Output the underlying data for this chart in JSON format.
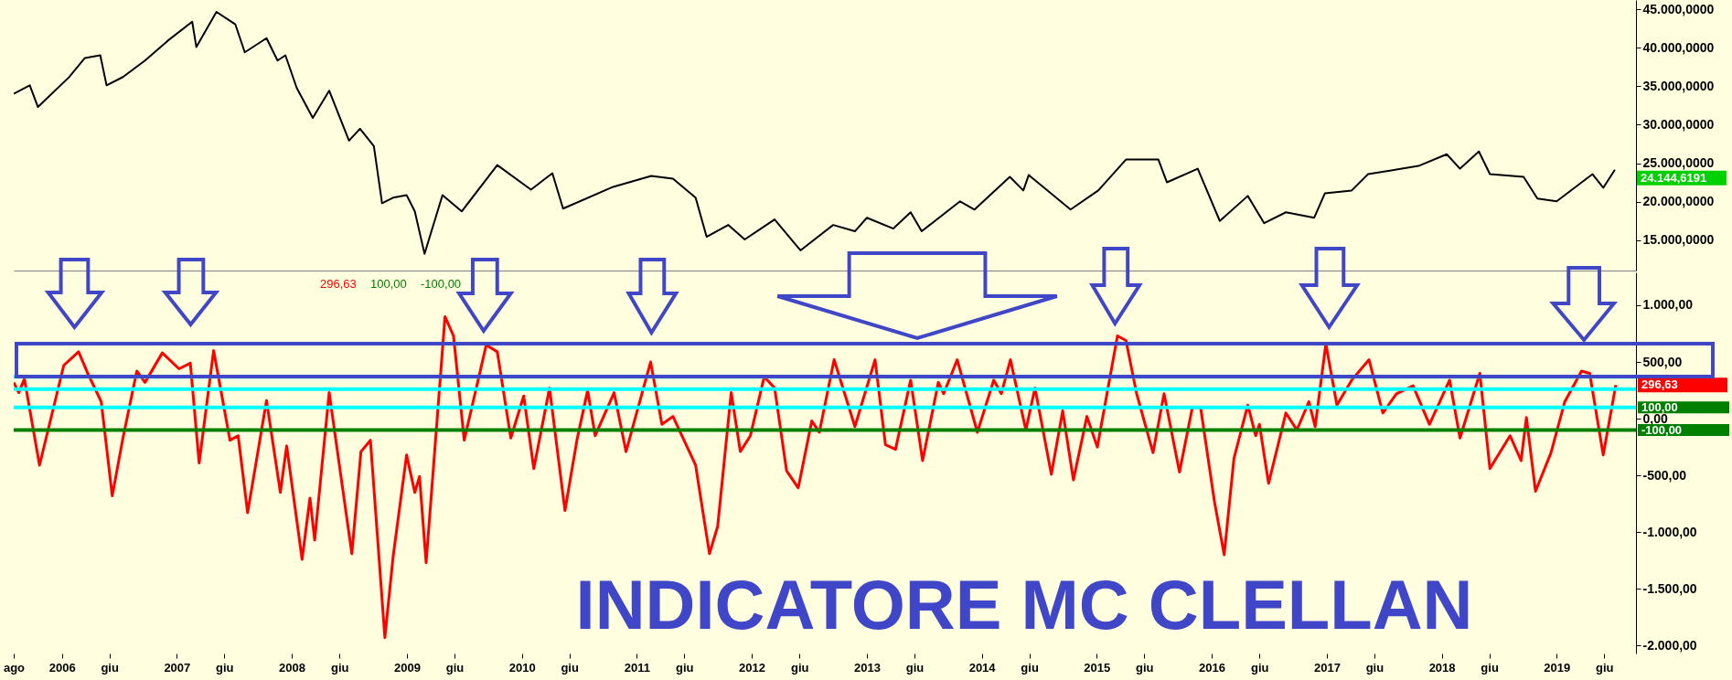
{
  "chart_data": [
    {
      "type": "line",
      "tick_labels": "y",
      "xlim": [
        "2005-08-01",
        "2019-09-10"
      ],
      "ylim": [
        11060,
        46200
      ],
      "yticks": [
        {
          "value": 15000,
          "label": "15.000,0000"
        },
        {
          "value": 20000,
          "label": "20.000,0000"
        },
        {
          "value": 25000,
          "label": "25.000,0000"
        },
        {
          "value": 30000,
          "label": "30.000,0000"
        },
        {
          "value": 35000,
          "label": "35.000,0000"
        },
        {
          "value": 40000,
          "label": "40.000,0000"
        },
        {
          "value": 45000,
          "label": "45.000,0000"
        }
      ],
      "x": [
        "2005-08-01",
        "2005-09-21",
        "2005-10-17",
        "2006-01-24",
        "2006-03-15",
        "2006-05-03",
        "2006-05-23",
        "2006-07-14",
        "2006-09-22",
        "2006-12-03",
        "2007-02-19",
        "2007-03-04",
        "2007-05-07",
        "2007-07-06",
        "2007-08-05",
        "2007-10-13",
        "2007-11-17",
        "2007-12-12",
        "2008-01-17",
        "2008-03-08",
        "2008-04-29",
        "2008-07-01",
        "2008-08-05",
        "2008-09-18",
        "2008-10-14",
        "2008-11-18",
        "2008-12-31",
        "2009-01-26",
        "2009-02-26",
        "2009-04-24",
        "2009-06-24",
        "2009-10-15",
        "2010-01-30",
        "2010-04-08",
        "2010-05-12",
        "2010-10-18",
        "2011-02-16",
        "2011-04-26",
        "2011-07-07",
        "2011-08-11",
        "2011-10-19",
        "2011-12-10",
        "2012-03-14",
        "2012-06-04",
        "2012-09-16",
        "2012-11-24",
        "2013-01-01",
        "2013-03-26",
        "2013-05-20",
        "2013-06-24",
        "2013-10-24",
        "2013-12-09",
        "2014-03-31",
        "2014-05-13",
        "2014-05-30",
        "2014-10-10",
        "2015-01-06",
        "2015-04-04",
        "2015-07-16",
        "2015-08-12",
        "2015-11-18",
        "2016-01-27",
        "2016-04-25",
        "2016-06-16",
        "2016-08-24",
        "2016-11-22",
        "2016-12-26",
        "2017-03-21",
        "2017-05-12",
        "2017-10-19",
        "2018-01-17",
        "2018-02-28",
        "2018-04-29",
        "2018-06-03",
        "2018-09-18",
        "2018-11-01",
        "2019-01-01",
        "2019-04-25",
        "2019-05-29",
        "2019-07-05"
      ],
      "series": [
        {
          "color": "#000000",
          "values": [
            34030,
            35120,
            32300,
            36180,
            38670,
            39020,
            35120,
            36200,
            38330,
            40900,
            43380,
            40100,
            44660,
            43030,
            39400,
            41240,
            38330,
            39020,
            34770,
            30880,
            34420,
            27940,
            29470,
            27230,
            19800,
            20520,
            20860,
            18740,
            13230,
            20860,
            18740,
            24760,
            21570,
            23700,
            19100,
            21930,
            23340,
            22990,
            20520,
            15450,
            16980,
            15100,
            17690,
            13680,
            16980,
            16160,
            17920,
            16510,
            18630,
            16160,
            20050,
            18980,
            23230,
            21460,
            23460,
            18980,
            21460,
            25470,
            25470,
            22520,
            24290,
            17500,
            20750,
            17210,
            18630,
            17920,
            21100,
            21460,
            23580,
            24640,
            26170,
            24290,
            26520,
            23580,
            23230,
            20400,
            20050,
            23580,
            21810,
            24144.6191
          ]
        }
      ],
      "annotations": [
        {
          "text": "24.144,6191",
          "x": "2019-07-05",
          "y": 24144.6191
        }
      ]
    },
    {
      "type": "line",
      "title": "INDICATORE MC CLELLAN",
      "xlim": [
        "2005-08-01",
        "2019-09-10"
      ],
      "ylim": [
        -2070,
        1290
      ],
      "xticks": [
        {
          "value": "2005-08-01",
          "label": "ago"
        },
        {
          "value": "2006-01-01",
          "label": "2006"
        },
        {
          "value": "2006-06-01",
          "label": "giu"
        },
        {
          "value": "2007-01-01",
          "label": "2007"
        },
        {
          "value": "2007-06-01",
          "label": "giu"
        },
        {
          "value": "2008-01-01",
          "label": "2008"
        },
        {
          "value": "2008-06-01",
          "label": "giu"
        },
        {
          "value": "2009-01-01",
          "label": "2009"
        },
        {
          "value": "2009-06-01",
          "label": "giu"
        },
        {
          "value": "2010-01-01",
          "label": "2010"
        },
        {
          "value": "2010-06-01",
          "label": "giu"
        },
        {
          "value": "2011-01-01",
          "label": "2011"
        },
        {
          "value": "2011-06-01",
          "label": "giu"
        },
        {
          "value": "2012-01-01",
          "label": "2012"
        },
        {
          "value": "2012-06-01",
          "label": "giu"
        },
        {
          "value": "2013-01-01",
          "label": "2013"
        },
        {
          "value": "2013-06-01",
          "label": "giu"
        },
        {
          "value": "2014-01-01",
          "label": "2014"
        },
        {
          "value": "2014-06-01",
          "label": "giu"
        },
        {
          "value": "2015-01-01",
          "label": "2015"
        },
        {
          "value": "2015-06-01",
          "label": "giu"
        },
        {
          "value": "2016-01-01",
          "label": "2016"
        },
        {
          "value": "2016-06-01",
          "label": "giu"
        },
        {
          "value": "2017-01-01",
          "label": "2017"
        },
        {
          "value": "2017-06-01",
          "label": "giu"
        },
        {
          "value": "2018-01-01",
          "label": "2018"
        },
        {
          "value": "2018-06-01",
          "label": "giu"
        },
        {
          "value": "2019-01-01",
          "label": "2019"
        },
        {
          "value": "2019-06-01",
          "label": "giu"
        }
      ],
      "yticks": [
        {
          "value": -2000,
          "label": "-2.000,00"
        },
        {
          "value": -1500,
          "label": "-1.500,00"
        },
        {
          "value": -1000,
          "label": "-1.000,00"
        },
        {
          "value": -500,
          "label": "-500,00"
        },
        {
          "value": 0,
          "label": "0,00"
        },
        {
          "value": 500,
          "label": "500,00"
        },
        {
          "value": 1000,
          "label": "1.000,00"
        }
      ],
      "x": [
        "2005-08-01",
        "2005-08-17",
        "2005-09-04",
        "2005-10-22",
        "2006-01-07",
        "2006-02-23",
        "2006-03-24",
        "2006-05-06",
        "2006-06-10",
        "2006-07-14",
        "2006-08-27",
        "2006-09-22",
        "2006-11-16",
        "2007-01-08",
        "2007-02-13",
        "2007-03-13",
        "2007-04-28",
        "2007-06-19",
        "2007-07-15",
        "2007-08-14",
        "2007-10-13",
        "2007-11-26",
        "2007-12-16",
        "2008-02-03",
        "2008-02-28",
        "2008-03-14",
        "2008-04-29",
        "2008-07-10",
        "2008-08-08",
        "2008-09-07",
        "2008-10-23",
        "2008-11-18",
        "2008-12-31",
        "2009-01-26",
        "2009-02-10",
        "2009-03-03",
        "2009-05-02",
        "2009-05-29",
        "2009-07-02",
        "2009-09-10",
        "2009-10-15",
        "2009-11-27",
        "2010-01-07",
        "2010-02-08",
        "2010-03-30",
        "2010-05-18",
        "2010-06-25",
        "2010-07-29",
        "2010-08-22",
        "2010-10-21",
        "2010-11-28",
        "2011-02-14",
        "2011-03-22",
        "2011-04-26",
        "2011-07-07",
        "2011-08-20",
        "2011-09-15",
        "2011-10-28",
        "2011-11-26",
        "2011-12-28",
        "2012-02-10",
        "2012-03-14",
        "2012-04-21",
        "2012-05-28",
        "2012-07-10",
        "2012-08-03",
        "2012-09-19",
        "2012-11-24",
        "2013-01-27",
        "2013-03-01",
        "2013-04-02",
        "2013-05-20",
        "2013-06-27",
        "2013-08-16",
        "2013-09-02",
        "2013-10-15",
        "2013-12-18",
        "2014-02-08",
        "2014-03-04",
        "2014-04-02",
        "2014-05-21",
        "2014-06-19",
        "2014-08-10",
        "2014-09-15",
        "2014-10-19",
        "2014-12-01",
        "2015-01-03",
        "2015-03-08",
        "2015-04-04",
        "2015-05-08",
        "2015-06-29",
        "2015-08-03",
        "2015-09-21",
        "2015-11-01",
        "2015-11-27",
        "2016-01-10",
        "2016-02-10",
        "2016-03-12",
        "2016-04-25",
        "2016-05-20",
        "2016-06-01",
        "2016-06-30",
        "2016-08-24",
        "2016-09-28",
        "2016-11-05",
        "2016-11-25",
        "2016-12-29",
        "2017-02-02",
        "2017-03-21",
        "2017-05-15",
        "2017-06-28",
        "2017-08-10",
        "2017-10-02",
        "2017-11-23",
        "2018-01-26",
        "2018-02-28",
        "2018-05-02",
        "2018-06-03",
        "2018-08-06",
        "2018-09-10",
        "2018-09-27",
        "2018-10-26",
        "2018-12-14",
        "2019-01-27",
        "2019-03-21",
        "2019-04-16",
        "2019-05-29",
        "2019-07-08"
      ],
      "series": [
        {
          "color": "#ff0000",
          "values": [
            320,
            230,
            350,
            -410,
            470,
            590,
            400,
            150,
            -680,
            -170,
            420,
            320,
            580,
            440,
            490,
            -390,
            600,
            -190,
            -150,
            -830,
            160,
            -650,
            -240,
            -1240,
            -700,
            -1070,
            230,
            -1190,
            -290,
            -190,
            -1930,
            -1220,
            -320,
            -650,
            -510,
            -1270,
            900,
            730,
            -190,
            650,
            590,
            -170,
            200,
            -440,
            270,
            -810,
            -190,
            250,
            -150,
            230,
            -290,
            500,
            -50,
            20,
            -410,
            -1190,
            -950,
            230,
            -290,
            -150,
            370,
            270,
            -460,
            -610,
            -20,
            -120,
            520,
            -70,
            520,
            -230,
            -270,
            340,
            -370,
            320,
            220,
            520,
            -120,
            340,
            220,
            520,
            -100,
            270,
            -490,
            70,
            -540,
            20,
            -250,
            730,
            690,
            220,
            -300,
            220,
            -470,
            100,
            100,
            -730,
            -1200,
            -350,
            120,
            -150,
            -50,
            -570,
            50,
            -100,
            150,
            -70,
            660,
            120,
            340,
            520,
            50,
            220,
            290,
            -50,
            340,
            -170,
            400,
            -440,
            -150,
            -370,
            10,
            -640,
            -300,
            150,
            420,
            400,
            -320,
            296.63
          ]
        }
      ],
      "ref_lines": [
        {
          "axis": "y",
          "value": 370,
          "color": "#00ffff"
        },
        {
          "axis": "y",
          "value": 260,
          "color": "#00ffff"
        },
        {
          "axis": "y",
          "value": 100,
          "label": "100,00",
          "color": "#00ffff"
        },
        {
          "axis": "y",
          "value": -100,
          "label": "-100,00",
          "color": "#008000"
        }
      ],
      "annotations": [
        "296,63",
        "100,00",
        "-100,00",
        {
          "text": "296,63",
          "x": "2019-07-08",
          "y": 296.63
        }
      ]
    }
  ]
}
